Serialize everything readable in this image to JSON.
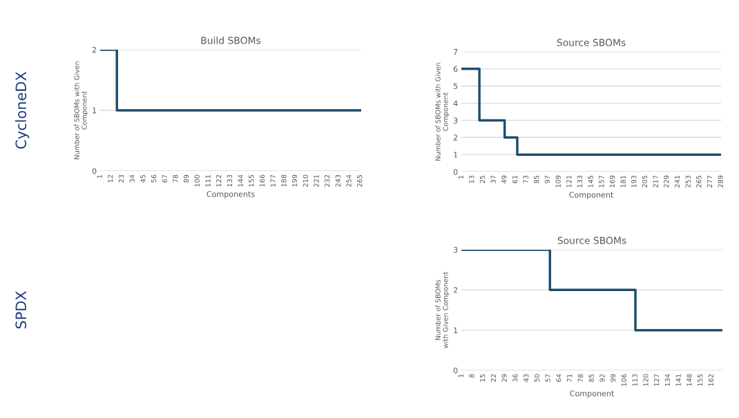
{
  "chart_data": [
    {
      "type": "step",
      "title": "Build SBOMs",
      "xlabel": "Components",
      "ylabel": "Number of SBOMs with Given\nComponent",
      "annotations": [
        "CycloneDX"
      ],
      "series": [
        {
          "color": "#1f4e6b",
          "x": [
            1,
            18,
            266
          ],
          "values": [
            2,
            1,
            1
          ]
        }
      ],
      "xlim": [
        1,
        266
      ],
      "xticks": [
        1,
        12,
        23,
        34,
        45,
        56,
        67,
        78,
        89,
        100,
        111,
        122,
        133,
        144,
        155,
        166,
        177,
        188,
        199,
        210,
        221,
        232,
        243,
        254,
        265
      ],
      "ylim": [
        0,
        2
      ],
      "yticks": [
        0,
        1,
        2
      ],
      "grid": "y",
      "legend": false
    },
    {
      "type": "step",
      "title": "Source SBOMs",
      "xlabel": "Component",
      "ylabel": "Number of SBOMs with Given\nComponent",
      "series": [
        {
          "color": "#1f4e6b",
          "x": [
            1,
            21,
            49,
            63,
            289
          ],
          "values": [
            6,
            3,
            2,
            1,
            1
          ]
        }
      ],
      "xlim": [
        1,
        289
      ],
      "xticks": [
        1,
        13,
        25,
        37,
        49,
        61,
        73,
        85,
        97,
        109,
        121,
        133,
        145,
        157,
        169,
        181,
        193,
        205,
        217,
        229,
        241,
        253,
        265,
        277,
        289
      ],
      "ylim": [
        0,
        7
      ],
      "yticks": [
        0,
        1,
        2,
        3,
        4,
        5,
        6,
        7
      ],
      "grid": "y",
      "legend": false
    },
    {
      "type": "step",
      "title": "Source SBOMs",
      "xlabel": "Component",
      "ylabel": "Number of SBOMs\nwith Given Component",
      "annotations": [
        "SPDX"
      ],
      "series": [
        {
          "color": "#1f4e6b",
          "x": [
            1,
            58,
            113,
            169
          ],
          "values": [
            3,
            2,
            1,
            1
          ]
        }
      ],
      "xlim": [
        1,
        169
      ],
      "xticks": [
        1,
        8,
        15,
        22,
        29,
        36,
        43,
        50,
        57,
        64,
        71,
        78,
        85,
        92,
        99,
        106,
        113,
        120,
        127,
        134,
        141,
        148,
        155,
        162
      ],
      "ylim": [
        0,
        3
      ],
      "yticks": [
        0,
        1,
        2,
        3
      ],
      "grid": "y",
      "legend": false
    }
  ]
}
